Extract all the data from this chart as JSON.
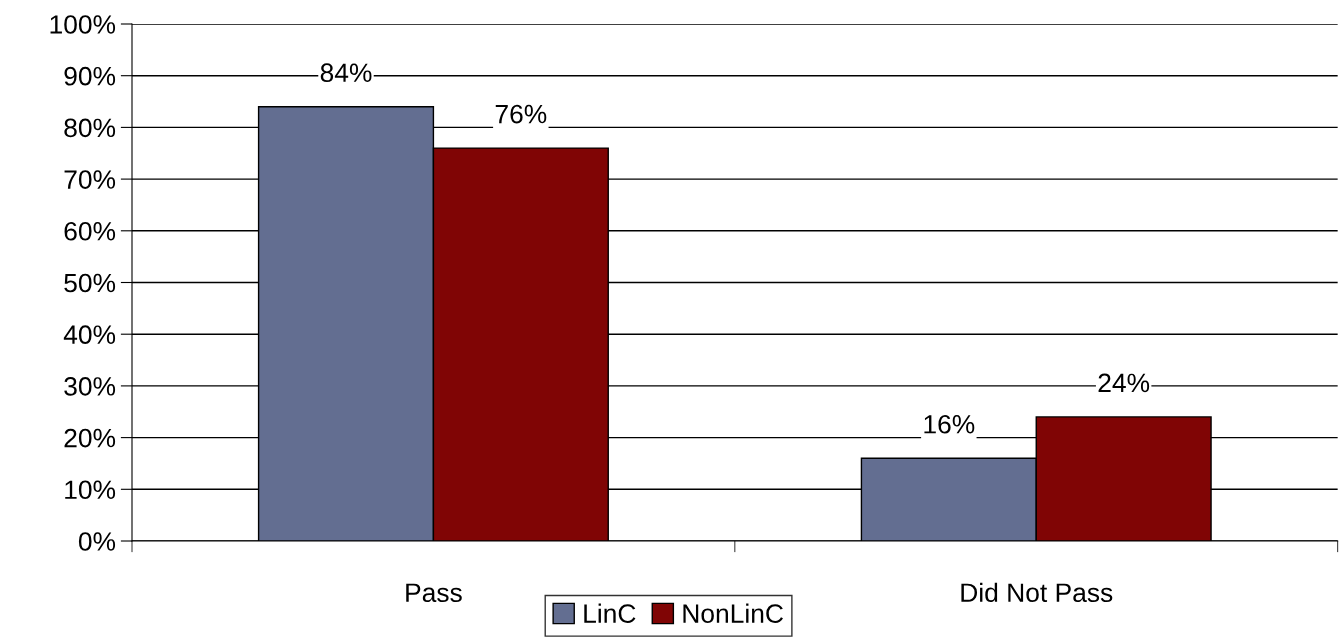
{
  "chart_data": {
    "type": "bar",
    "categories": [
      "Pass",
      "Did Not Pass"
    ],
    "series": [
      {
        "name": "LinC",
        "color": "#636e91",
        "values": [
          84,
          16
        ],
        "value_labels": [
          "84%",
          "16%"
        ]
      },
      {
        "name": "NonLinC",
        "color": "#800505",
        "values": [
          76,
          24
        ],
        "value_labels": [
          "76%",
          "24%"
        ]
      }
    ],
    "ylim": [
      0,
      100
    ],
    "yticks": [
      {
        "value": 0,
        "label": "0%"
      },
      {
        "value": 10,
        "label": "10%"
      },
      {
        "value": 20,
        "label": "20%"
      },
      {
        "value": 30,
        "label": "30%"
      },
      {
        "value": 40,
        "label": "40%"
      },
      {
        "value": 50,
        "label": "50%"
      },
      {
        "value": 60,
        "label": "60%"
      },
      {
        "value": 70,
        "label": "70%"
      },
      {
        "value": 80,
        "label": "80%"
      },
      {
        "value": 90,
        "label": "90%"
      },
      {
        "value": 100,
        "label": "100%"
      }
    ],
    "grid": "y",
    "legend": "bottom"
  }
}
